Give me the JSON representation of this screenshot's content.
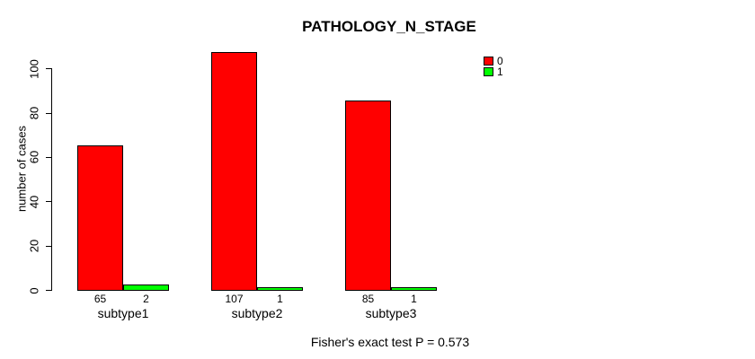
{
  "chart_data": {
    "type": "bar",
    "title": "PATHOLOGY_N_STAGE",
    "xlabel": "",
    "ylabel": "number of cases",
    "categories": [
      "subtype1",
      "subtype2",
      "subtype3"
    ],
    "series": [
      {
        "name": "0",
        "color": "#ff0000",
        "values": [
          65,
          107,
          85
        ]
      },
      {
        "name": "1",
        "color": "#00ff00",
        "values": [
          2,
          1,
          1
        ]
      }
    ],
    "bar_count_labels": [
      [
        "65",
        "2"
      ],
      [
        "107",
        "1"
      ],
      [
        "85",
        "1"
      ]
    ],
    "yticks": [
      0,
      20,
      40,
      60,
      80,
      100
    ],
    "ylim": [
      0,
      107
    ],
    "grid": false,
    "legend_position": "top-right",
    "annotation": "Fisher's exact test P = 0.573"
  },
  "colors": {
    "background": "#ffffff",
    "axis": "#000000",
    "text": "#000000",
    "bar_border": "#000000",
    "series_0": "#ff0000",
    "series_1": "#00ff00"
  }
}
